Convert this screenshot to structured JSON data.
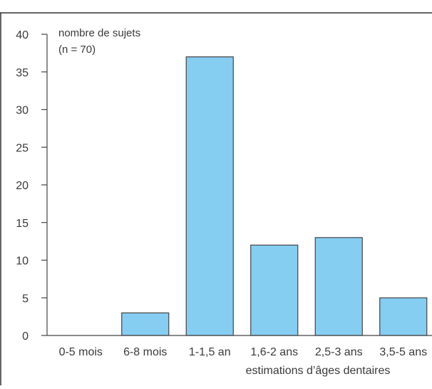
{
  "chart_data": {
    "type": "bar",
    "ylabel_line1": "nombre de sujets",
    "ylabel_line2": "(n = 70)",
    "xlabel": "estimations d’âges dentaires",
    "categories": [
      "0-5 mois",
      "6-8 mois",
      "1-1,5 an",
      "1,6-2 ans",
      "2,5-3 ans",
      "3,5-5 ans"
    ],
    "values": [
      0,
      3,
      37,
      12,
      13,
      5
    ],
    "ylim": [
      0,
      40
    ],
    "yticks": [
      0,
      5,
      10,
      15,
      20,
      25,
      30,
      35,
      40
    ],
    "bar_color": "#86cdf2",
    "bar_edge_color": "#444444",
    "axis_color": "#444444",
    "grid": false
  }
}
